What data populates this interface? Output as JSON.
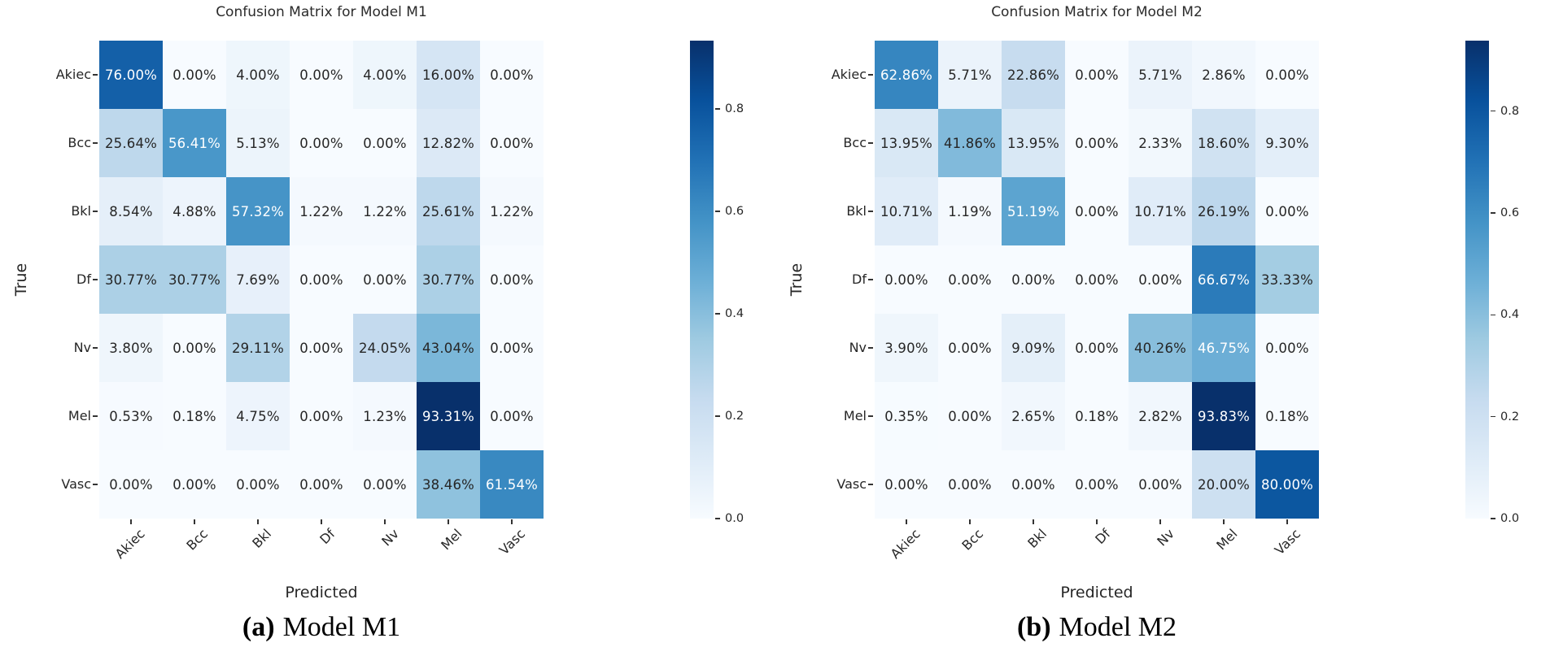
{
  "colors": {
    "annot_dark": "#262626",
    "annot_light": "#ffffff",
    "cmap_low": "#f7fbff",
    "cmap_high": "#08306b",
    "tick_color": "#333333"
  },
  "chart_data": [
    {
      "type": "heatmap",
      "title": "Confusion Matrix for Model M1",
      "xlabel": "Predicted",
      "ylabel": "True",
      "categories": [
        "Akiec",
        "Bcc",
        "Bkl",
        "Df",
        "Nv",
        "Mel",
        "Vasc"
      ],
      "matrix_percent": [
        [
          76.0,
          0.0,
          4.0,
          0.0,
          4.0,
          16.0,
          0.0
        ],
        [
          25.64,
          56.41,
          5.13,
          0.0,
          0.0,
          12.82,
          0.0
        ],
        [
          8.54,
          4.88,
          57.32,
          1.22,
          1.22,
          25.61,
          1.22
        ],
        [
          30.77,
          30.77,
          7.69,
          0.0,
          0.0,
          30.77,
          0.0
        ],
        [
          3.8,
          0.0,
          29.11,
          0.0,
          24.05,
          43.04,
          0.0
        ],
        [
          0.53,
          0.18,
          4.75,
          0.0,
          1.23,
          93.31,
          0.0
        ],
        [
          0.0,
          0.0,
          0.0,
          0.0,
          0.0,
          38.46,
          61.54
        ]
      ],
      "colormap": "Blues",
      "vmin": 0.0,
      "vmax": 0.9331,
      "colorbar_ticks": [
        0.0,
        0.2,
        0.4,
        0.6,
        0.8
      ],
      "legend_position": "right-colorbar",
      "grid": false,
      "caption": {
        "index": "(a)",
        "text": "Model M1"
      }
    },
    {
      "type": "heatmap",
      "title": "Confusion Matrix for Model M2",
      "xlabel": "Predicted",
      "ylabel": "True",
      "categories": [
        "Akiec",
        "Bcc",
        "Bkl",
        "Df",
        "Nv",
        "Mel",
        "Vasc"
      ],
      "matrix_percent": [
        [
          62.86,
          5.71,
          22.86,
          0.0,
          5.71,
          2.86,
          0.0
        ],
        [
          13.95,
          41.86,
          13.95,
          0.0,
          2.33,
          18.6,
          9.3
        ],
        [
          10.71,
          1.19,
          51.19,
          0.0,
          10.71,
          26.19,
          0.0
        ],
        [
          0.0,
          0.0,
          0.0,
          0.0,
          0.0,
          66.67,
          33.33
        ],
        [
          3.9,
          0.0,
          9.09,
          0.0,
          40.26,
          46.75,
          0.0
        ],
        [
          0.35,
          0.0,
          2.65,
          0.18,
          2.82,
          93.83,
          0.18
        ],
        [
          0.0,
          0.0,
          0.0,
          0.0,
          0.0,
          20.0,
          80.0
        ]
      ],
      "colormap": "Blues",
      "vmin": 0.0,
      "vmax": 0.9383,
      "colorbar_ticks": [
        0.0,
        0.2,
        0.4,
        0.6,
        0.8
      ],
      "legend_position": "right-colorbar",
      "grid": false,
      "caption": {
        "index": "(b)",
        "text": "Model M2"
      }
    }
  ]
}
